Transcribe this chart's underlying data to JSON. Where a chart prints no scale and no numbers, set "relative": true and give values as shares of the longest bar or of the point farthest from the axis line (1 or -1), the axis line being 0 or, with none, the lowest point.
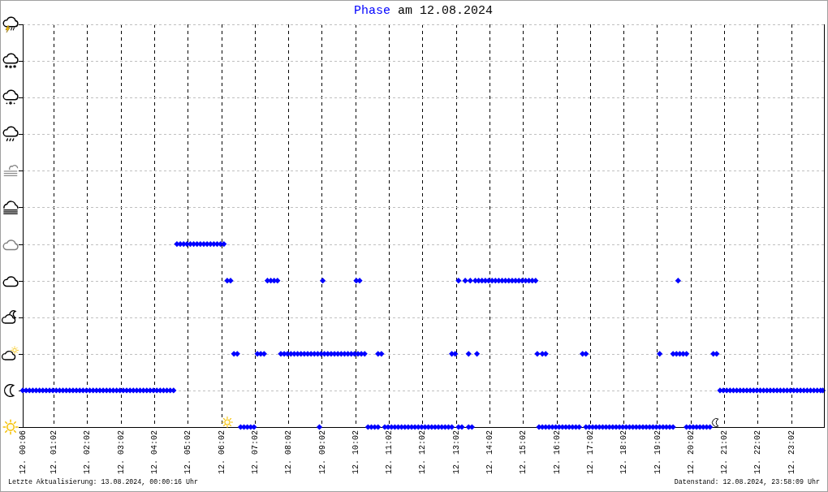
{
  "chart_data": {
    "type": "scatter",
    "title": "am 12.08.2024",
    "relative": true,
    "x": [
      "2024-08-12T00:06",
      "2024-08-12T00:12",
      "2024-08-12T00:18",
      "2024-08-12T00:24",
      "2024-08-12T00:30",
      "2024-08-12T00:36",
      "2024-08-12T00:42",
      "2024-08-12T00:48",
      "2024-08-12T00:54",
      "2024-08-12T01:00",
      "2024-08-12T01:06",
      "2024-08-12T01:12",
      "2024-08-12T01:18",
      "2024-08-12T01:24",
      "2024-08-12T01:30",
      "2024-08-12T01:36",
      "2024-08-12T01:42",
      "2024-08-12T01:48",
      "2024-08-12T01:54",
      "2024-08-12T02:00",
      "2024-08-12T02:06",
      "2024-08-12T02:12",
      "2024-08-12T02:18",
      "2024-08-12T02:24",
      "2024-08-12T02:30",
      "2024-08-12T02:36",
      "2024-08-12T02:42",
      "2024-08-12T02:48",
      "2024-08-12T02:54",
      "2024-08-12T03:00",
      "2024-08-12T03:06",
      "2024-08-12T03:12",
      "2024-08-12T03:18",
      "2024-08-12T03:24",
      "2024-08-12T03:30",
      "2024-08-12T03:36",
      "2024-08-12T03:42",
      "2024-08-12T03:48",
      "2024-08-12T03:54",
      "2024-08-12T04:00",
      "2024-08-12T04:06",
      "2024-08-12T04:12",
      "2024-08-12T04:18",
      "2024-08-12T04:24",
      "2024-08-12T04:30",
      "2024-08-12T04:36",
      "2024-08-12T04:42",
      "2024-08-12T04:48",
      "2024-08-12T04:54",
      "2024-08-12T05:00",
      "2024-08-12T05:06",
      "2024-08-12T05:12",
      "2024-08-12T05:18",
      "2024-08-12T05:24",
      "2024-08-12T05:30",
      "2024-08-12T05:36",
      "2024-08-12T05:42",
      "2024-08-12T05:48",
      "2024-08-12T05:54",
      "2024-08-12T06:00",
      "2024-08-12T06:06",
      "2024-08-12T06:12",
      "2024-08-12T06:18",
      "2024-08-12T06:24",
      "2024-08-12T06:30",
      "2024-08-12T06:36",
      "2024-08-12T06:42",
      "2024-08-12T06:48",
      "2024-08-12T06:54",
      "2024-08-12T07:00",
      "2024-08-12T07:06",
      "2024-08-12T07:12",
      "2024-08-12T07:18",
      "2024-08-12T07:24",
      "2024-08-12T07:30",
      "2024-08-12T07:36",
      "2024-08-12T07:42",
      "2024-08-12T07:48",
      "2024-08-12T07:54",
      "2024-08-12T08:00",
      "2024-08-12T08:06",
      "2024-08-12T08:12",
      "2024-08-12T08:18",
      "2024-08-12T08:24",
      "2024-08-12T08:30",
      "2024-08-12T08:36",
      "2024-08-12T08:42",
      "2024-08-12T08:48",
      "2024-08-12T08:54",
      "2024-08-12T08:57",
      "2024-08-12T09:00",
      "2024-08-12T09:03",
      "2024-08-12T09:06",
      "2024-08-12T09:12",
      "2024-08-12T09:18",
      "2024-08-12T09:24",
      "2024-08-12T09:30",
      "2024-08-12T09:36",
      "2024-08-12T09:42",
      "2024-08-12T09:48",
      "2024-08-12T09:54",
      "2024-08-12T10:00",
      "2024-08-12T10:03",
      "2024-08-12T10:06",
      "2024-08-12T10:09",
      "2024-08-12T10:12",
      "2024-08-12T10:18",
      "2024-08-12T10:24",
      "2024-08-12T10:30",
      "2024-08-12T10:36",
      "2024-08-12T10:42",
      "2024-08-12T10:42",
      "2024-08-12T10:48",
      "2024-08-12T10:54",
      "2024-08-12T11:00",
      "2024-08-12T11:06",
      "2024-08-12T11:12",
      "2024-08-12T11:18",
      "2024-08-12T11:24",
      "2024-08-12T11:30",
      "2024-08-12T11:36",
      "2024-08-12T11:42",
      "2024-08-12T11:48",
      "2024-08-12T11:54",
      "2024-08-12T12:00",
      "2024-08-12T12:06",
      "2024-08-12T12:12",
      "2024-08-12T12:18",
      "2024-08-12T12:24",
      "2024-08-12T12:30",
      "2024-08-12T12:36",
      "2024-08-12T12:42",
      "2024-08-12T12:48",
      "2024-08-12T12:54",
      "2024-08-12T12:54",
      "2024-08-12T13:00",
      "2024-08-12T13:06",
      "2024-08-12T13:06",
      "2024-08-12T13:12",
      "2024-08-12T13:18",
      "2024-08-12T13:24",
      "2024-08-12T13:24",
      "2024-08-12T13:27",
      "2024-08-12T13:30",
      "2024-08-12T13:36",
      "2024-08-12T13:39",
      "2024-08-12T13:42",
      "2024-08-12T13:48",
      "2024-08-12T13:54",
      "2024-08-12T14:00",
      "2024-08-12T14:06",
      "2024-08-12T14:12",
      "2024-08-12T14:18",
      "2024-08-12T14:24",
      "2024-08-12T14:30",
      "2024-08-12T14:36",
      "2024-08-12T14:42",
      "2024-08-12T14:48",
      "2024-08-12T14:54",
      "2024-08-12T15:00",
      "2024-08-12T15:06",
      "2024-08-12T15:12",
      "2024-08-12T15:18",
      "2024-08-12T15:24",
      "2024-08-12T15:27",
      "2024-08-12T15:30",
      "2024-08-12T15:36",
      "2024-08-12T15:36",
      "2024-08-12T15:42",
      "2024-08-12T15:42",
      "2024-08-12T15:48",
      "2024-08-12T15:54",
      "2024-08-12T16:00",
      "2024-08-12T16:06",
      "2024-08-12T16:12",
      "2024-08-12T16:18",
      "2024-08-12T16:24",
      "2024-08-12T16:30",
      "2024-08-12T16:36",
      "2024-08-12T16:42",
      "2024-08-12T16:48",
      "2024-08-12T16:54",
      "2024-08-12T16:54",
      "2024-08-12T17:00",
      "2024-08-12T17:06",
      "2024-08-12T17:12",
      "2024-08-12T17:18",
      "2024-08-12T17:24",
      "2024-08-12T17:30",
      "2024-08-12T17:36",
      "2024-08-12T17:42",
      "2024-08-12T17:48",
      "2024-08-12T17:54",
      "2024-08-12T18:00",
      "2024-08-12T18:06",
      "2024-08-12T18:12",
      "2024-08-12T18:18",
      "2024-08-12T18:24",
      "2024-08-12T18:30",
      "2024-08-12T18:36",
      "2024-08-12T18:42",
      "2024-08-12T18:48",
      "2024-08-12T18:54",
      "2024-08-12T19:00",
      "2024-08-12T19:06",
      "2024-08-12T19:06",
      "2024-08-12T19:12",
      "2024-08-12T19:18",
      "2024-08-12T19:24",
      "2024-08-12T19:30",
      "2024-08-12T19:30",
      "2024-08-12T19:36",
      "2024-08-12T19:39",
      "2024-08-12T19:42",
      "2024-08-12T19:48",
      "2024-08-12T19:54",
      "2024-08-12T19:54",
      "2024-08-12T20:00",
      "2024-08-12T20:06",
      "2024-08-12T20:12",
      "2024-08-12T20:18",
      "2024-08-12T20:24",
      "2024-08-12T20:30",
      "2024-08-12T20:36",
      "2024-08-12T20:42",
      "2024-08-12T20:48",
      "2024-08-12T20:54",
      "2024-08-12T21:00",
      "2024-08-12T21:06",
      "2024-08-12T21:12",
      "2024-08-12T21:18",
      "2024-08-12T21:24",
      "2024-08-12T21:30",
      "2024-08-12T21:36",
      "2024-08-12T21:42",
      "2024-08-12T21:48",
      "2024-08-12T21:54",
      "2024-08-12T22:00",
      "2024-08-12T22:06",
      "2024-08-12T22:12",
      "2024-08-12T22:18",
      "2024-08-12T22:24",
      "2024-08-12T22:30",
      "2024-08-12T22:36",
      "2024-08-12T22:42",
      "2024-08-12T22:48",
      "2024-08-12T22:54",
      "2024-08-12T23:00",
      "2024-08-12T23:06",
      "2024-08-12T23:12",
      "2024-08-12T23:18",
      "2024-08-12T23:24",
      "2024-08-12T23:30",
      "2024-08-12T23:36",
      "2024-08-12T23:42",
      "2024-08-12T23:48",
      "2024-08-12T23:54",
      "2024-08-12T23:58"
    ],
    "series": [
      {
        "name": "Phase",
        "color": "#0000ff",
        "values": [
          0.2,
          0.2,
          0.2,
          0.2,
          0.2,
          0.2,
          0.2,
          0.2,
          0.2,
          0.2,
          0.2,
          0.2,
          0.2,
          0.2,
          0.2,
          0.2,
          0.2,
          0.2,
          0.2,
          0.2,
          0.2,
          0.2,
          0.2,
          0.2,
          0.2,
          0.2,
          0.2,
          0.2,
          0.2,
          0.2,
          0.2,
          0.2,
          0.2,
          0.2,
          0.2,
          0.2,
          0.2,
          0.2,
          0.2,
          0.2,
          0.2,
          0.2,
          0.2,
          0.2,
          0.2,
          0.2,
          1,
          1,
          1,
          1,
          1,
          1,
          1,
          1,
          1,
          1,
          1,
          1,
          1,
          1,
          1,
          0.8,
          0.8,
          0.4,
          0.4,
          0,
          0,
          0,
          0,
          0,
          0.4,
          0.4,
          0.4,
          0.8,
          0.8,
          0.8,
          0.8,
          0.4,
          0.4,
          0.4,
          0.4,
          0.4,
          0.4,
          0.4,
          0.4,
          0.4,
          0.4,
          0.4,
          0.4,
          0,
          0.4,
          0.8,
          0.4,
          0.4,
          0.4,
          0.4,
          0.4,
          0.4,
          0.4,
          0.4,
          0.4,
          0.4,
          0.8,
          0.4,
          0.8,
          0.4,
          0.4,
          0,
          0,
          0,
          0,
          0.4,
          0.4,
          0,
          0,
          0,
          0,
          0,
          0,
          0,
          0,
          0,
          0,
          0,
          0,
          0,
          0,
          0,
          0,
          0,
          0,
          0,
          0,
          0,
          0.4,
          0.4,
          0.8,
          0,
          0,
          0.8,
          0.4,
          0,
          0.8,
          0,
          0.8,
          0.4,
          0.8,
          0.8,
          0.8,
          0.8,
          0.8,
          0.8,
          0.8,
          0.8,
          0.8,
          0.8,
          0.8,
          0.8,
          0.8,
          0.8,
          0.8,
          0.8,
          0.8,
          0.8,
          0.4,
          0,
          0,
          0.4,
          0,
          0.4,
          0,
          0,
          0,
          0,
          0,
          0,
          0,
          0,
          0,
          0,
          0.4,
          0.4,
          0,
          0,
          0,
          0,
          0,
          0,
          0,
          0,
          0,
          0,
          0,
          0,
          0,
          0,
          0,
          0,
          0,
          0,
          0,
          0,
          0,
          0,
          0,
          0.4,
          0,
          0,
          0,
          0,
          0.4,
          0.4,
          0.8,
          0.4,
          0.4,
          0.4,
          0,
          0,
          0,
          0,
          0,
          0,
          0,
          0,
          0.4,
          0.4,
          0.2,
          0.2,
          0.2,
          0.2,
          0.2,
          0.2,
          0.2,
          0.2,
          0.2,
          0.2,
          0.2,
          0.2,
          0.2,
          0.2,
          0.2,
          0.2,
          0.2,
          0.2,
          0.2,
          0.2,
          0.2,
          0.2,
          0.2,
          0.2,
          0.2,
          0.2,
          0.2,
          0.2,
          0.2,
          0.2,
          0.2,
          0.2
        ]
      }
    ],
    "xlim": [
      "2024-08-12T00:06",
      "2024-08-13T00:00"
    ],
    "xticks": [
      {
        "value": "2024-08-12T00:06",
        "label": "12. 00:06"
      },
      {
        "value": "2024-08-12T01:02",
        "label": "12. 01:02"
      },
      {
        "value": "2024-08-12T02:02",
        "label": "12. 02:02"
      },
      {
        "value": "2024-08-12T03:02",
        "label": "12. 03:02"
      },
      {
        "value": "2024-08-12T04:02",
        "label": "12. 04:02"
      },
      {
        "value": "2024-08-12T05:02",
        "label": "12. 05:02"
      },
      {
        "value": "2024-08-12T06:02",
        "label": "12. 06:02"
      },
      {
        "value": "2024-08-12T07:02",
        "label": "12. 07:02"
      },
      {
        "value": "2024-08-12T08:02",
        "label": "12. 08:02"
      },
      {
        "value": "2024-08-12T09:02",
        "label": "12. 09:02"
      },
      {
        "value": "2024-08-12T10:02",
        "label": "12. 10:02"
      },
      {
        "value": "2024-08-12T11:02",
        "label": "12. 11:02"
      },
      {
        "value": "2024-08-12T12:02",
        "label": "12. 12:02"
      },
      {
        "value": "2024-08-12T13:02",
        "label": "12. 13:02"
      },
      {
        "value": "2024-08-12T14:02",
        "label": "12. 14:02"
      },
      {
        "value": "2024-08-12T15:02",
        "label": "12. 15:02"
      },
      {
        "value": "2024-08-12T16:02",
        "label": "12. 16:02"
      },
      {
        "value": "2024-08-12T17:02",
        "label": "12. 17:02"
      },
      {
        "value": "2024-08-12T18:02",
        "label": "12. 18:02"
      },
      {
        "value": "2024-08-12T19:02",
        "label": "12. 19:02"
      },
      {
        "value": "2024-08-12T20:02",
        "label": "12. 20:02"
      },
      {
        "value": "2024-08-12T21:02",
        "label": "12. 21:02"
      },
      {
        "value": "2024-08-12T22:02",
        "label": "12. 22:02"
      },
      {
        "value": "2024-08-12T23:02",
        "label": "12. 23:02"
      }
    ],
    "grid": true,
    "marker": "diamond",
    "annotations": [
      "Letzte Aktualisierung: 13.08.2024, 00:00:16 Uhr",
      "Datenstand: 12.08.2024, 23:58:09 Uhr"
    ]
  }
}
